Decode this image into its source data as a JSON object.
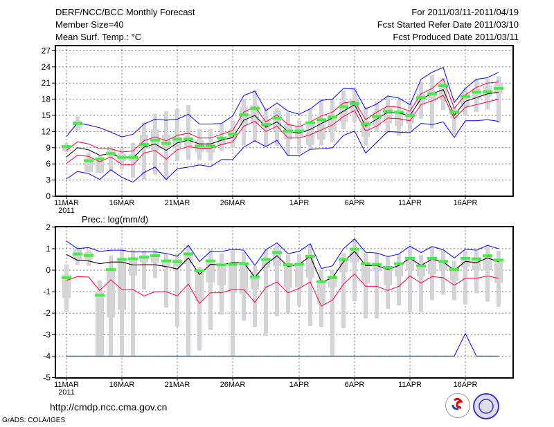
{
  "header": {
    "title": "DERF/NCC/BCC Monthly Forecast",
    "member_size": "Member Size=40",
    "variable": "Mean Surf. Temp.: °C",
    "period": "For 2011/03/11-2011/04/19",
    "start_date": "Fcst Started Refer Date 2011/03/10",
    "produced_date": "Fcst Produced Date 2011/03/11"
  },
  "footer": {
    "url": "http://cmdp.ncc.cma.gov.cn",
    "credit": "GrADS: COLA/IGES",
    "logos": [
      "BCC",
      "NCC"
    ]
  },
  "colors": {
    "max_min": "#0000ff",
    "spread": "#ff0033",
    "mean": "#000000",
    "marker": "#44ee44",
    "box": "#d3d3d8"
  },
  "chart_data": [
    {
      "type": "line",
      "title": "Mean Surf. Temp.: °C",
      "xlabel": "",
      "ylabel": "",
      "ylim": [
        0,
        27
      ],
      "yticks": [
        "0",
        "3",
        "6",
        "9",
        "12",
        "15",
        "18",
        "21",
        "24",
        "27"
      ],
      "xtick_days": [
        0,
        5,
        10,
        15,
        21,
        26,
        31,
        36
      ],
      "xtick_labels": [
        "11MAR",
        "16MAR",
        "21MAR",
        "26MAR",
        "1APR",
        "6APR",
        "11APR",
        "16APR"
      ],
      "year_label": "2011",
      "grid": true,
      "days": 40,
      "series": [
        {
          "name": "max",
          "color": "#0000ff",
          "values": [
            11.1,
            13.6,
            13.2,
            12.7,
            11.9,
            11.0,
            11.5,
            13.4,
            14.3,
            14.1,
            14.3,
            15.2,
            13.4,
            13.4,
            13.5,
            14.9,
            18.7,
            19.5,
            15.9,
            17.3,
            15.8,
            15.2,
            16.2,
            17.8,
            18.0,
            20.0,
            19.9,
            16.2,
            17.1,
            18.6,
            18.2,
            17.0,
            21.7,
            23.0,
            23.9,
            17.4,
            20.0,
            21.7,
            22.0,
            23.0
          ]
        },
        {
          "name": "min",
          "color": "#0000ff",
          "values": [
            3.2,
            4.6,
            4.2,
            3.1,
            4.9,
            3.5,
            2.6,
            4.4,
            5.4,
            3.1,
            5.1,
            5.4,
            5.8,
            5.5,
            6.8,
            6.8,
            9.1,
            10.3,
            9.2,
            10.4,
            7.5,
            7.5,
            8.7,
            8.8,
            9.0,
            11.3,
            12.1,
            8.0,
            10.0,
            12.0,
            11.9,
            11.8,
            13.5,
            13.3,
            13.8,
            10.9,
            14.0,
            14.0,
            14.2,
            13.9
          ]
        },
        {
          "name": "upper",
          "color": "#ff0033",
          "values": [
            8.5,
            10.1,
            9.7,
            8.8,
            8.8,
            8.2,
            8.4,
            10.3,
            11.0,
            10.3,
            11.3,
            11.7,
            10.8,
            10.8,
            11.5,
            12.2,
            15.6,
            16.6,
            13.8,
            15.1,
            13.3,
            12.9,
            13.8,
            14.9,
            15.6,
            17.3,
            17.6,
            14.2,
            15.6,
            16.7,
            16.5,
            15.8,
            19.0,
            20.0,
            21.8,
            16.3,
            18.8,
            20.2,
            21.0,
            21.2
          ]
        },
        {
          "name": "lower",
          "color": "#ff0033",
          "values": [
            6.1,
            7.6,
            7.4,
            6.4,
            7.3,
            5.9,
            5.8,
            8.0,
            8.5,
            6.9,
            8.6,
            9.2,
            8.9,
            8.9,
            9.6,
            10.1,
            13.0,
            13.9,
            12.0,
            13.0,
            10.8,
            10.8,
            11.4,
            12.3,
            13.2,
            14.8,
            15.9,
            12.1,
            13.0,
            14.5,
            14.4,
            14.0,
            17.0,
            17.7,
            18.7,
            14.4,
            16.5,
            17.0,
            17.5,
            18.0
          ]
        },
        {
          "name": "mean",
          "color": "#000000",
          "values": [
            7.3,
            9.0,
            8.6,
            7.6,
            7.9,
            7.1,
            7.1,
            9.1,
            9.7,
            8.5,
            9.9,
            10.4,
            9.7,
            9.7,
            10.4,
            10.9,
            14.1,
            15.0,
            12.8,
            13.8,
            12.0,
            11.7,
            12.4,
            13.5,
            14.5,
            15.8,
            17.0,
            13.0,
            14.3,
            15.6,
            15.4,
            15.0,
            18.1,
            19.0,
            19.8,
            15.0,
            17.6,
            18.3,
            19.0,
            19.3
          ]
        }
      ],
      "markers": [
        9.2,
        13.5,
        6.6,
        6.9,
        7.9,
        7.2,
        7.2,
        9.6,
        10.4,
        9.8,
        10.6,
        10.6,
        9.3,
        9.3,
        10.8,
        11.5,
        15.1,
        16.3,
        13.3,
        14.5,
        12.1,
        12.1,
        13.6,
        14.2,
        14.7,
        16.6,
        17.2,
        13.4,
        14.8,
        15.8,
        15.6,
        15.0,
        18.3,
        19.0,
        20.5,
        15.6,
        18.5,
        19.3,
        19.4,
        20.0
      ],
      "whisker": [
        [
          8.2,
          9.9
        ],
        [
          12.2,
          14.8
        ],
        [
          4.5,
          8.1
        ],
        [
          4.3,
          7.5
        ],
        [
          4.7,
          9.2
        ],
        [
          5.0,
          9.0
        ],
        [
          3.4,
          9.9
        ],
        [
          3.1,
          13.8
        ],
        [
          4.0,
          15.3
        ],
        [
          3.1,
          15.8
        ],
        [
          6.5,
          16.2
        ],
        [
          6.7,
          16.9
        ],
        [
          6.7,
          12.5
        ],
        [
          6.6,
          12.5
        ],
        [
          8.4,
          13.4
        ],
        [
          9.0,
          14.1
        ],
        [
          9.4,
          18.1
        ],
        [
          10.0,
          19.7
        ],
        [
          9.3,
          16.4
        ],
        [
          9.4,
          16.4
        ],
        [
          7.5,
          15.6
        ],
        [
          8.0,
          14.1
        ],
        [
          8.6,
          16.2
        ],
        [
          9.4,
          18.0
        ],
        [
          10.0,
          17.9
        ],
        [
          12.4,
          19.6
        ],
        [
          13.8,
          20.1
        ],
        [
          9.4,
          16.6
        ],
        [
          12.0,
          17.6
        ],
        [
          11.8,
          18.5
        ],
        [
          11.2,
          17.9
        ],
        [
          12.1,
          17.6
        ],
        [
          14.4,
          21.2
        ],
        [
          12.6,
          22.5
        ],
        [
          16.0,
          21.9
        ],
        [
          11.4,
          16.6
        ],
        [
          14.9,
          20.1
        ],
        [
          15.6,
          21.7
        ],
        [
          16.1,
          21.8
        ],
        [
          13.6,
          22.2
        ]
      ],
      "box": [
        [
          8.4,
          9.5
        ],
        [
          12.6,
          14.0
        ],
        [
          4.5,
          7.0
        ],
        [
          4.3,
          7.2
        ],
        [
          7.5,
          8.8
        ],
        [
          6.5,
          8.0
        ],
        [
          6.5,
          7.8
        ],
        [
          8.8,
          11.4
        ],
        [
          8.5,
          12.4
        ],
        [
          8.8,
          11.4
        ],
        [
          9.0,
          11.0
        ],
        [
          8.8,
          11.0
        ],
        [
          8.2,
          10.4
        ],
        [
          8.1,
          10.0
        ],
        [
          9.5,
          11.0
        ],
        [
          10.6,
          12.4
        ],
        [
          13.0,
          16.6
        ],
        [
          13.4,
          16.9
        ],
        [
          12.5,
          14.3
        ],
        [
          12.2,
          15.8
        ],
        [
          10.5,
          13.4
        ],
        [
          11.0,
          13.0
        ],
        [
          9.5,
          13.9
        ],
        [
          10.5,
          14.0
        ],
        [
          12.0,
          15.0
        ],
        [
          13.8,
          17.5
        ],
        [
          15.6,
          18.0
        ],
        [
          11.0,
          14.0
        ],
        [
          13.0,
          15.7
        ],
        [
          13.5,
          16.5
        ],
        [
          13.0,
          15.8
        ],
        [
          13.5,
          15.8
        ],
        [
          17.0,
          19.0
        ],
        [
          17.5,
          19.5
        ],
        [
          18.0,
          20.5
        ],
        [
          14.5,
          15.5
        ],
        [
          16.5,
          19.0
        ],
        [
          18.0,
          20.0
        ],
        [
          18.5,
          20.5
        ],
        [
          19.0,
          21.0
        ]
      ]
    },
    {
      "type": "line",
      "title": "Prec.: log(mm/d)",
      "xlabel": "",
      "ylabel": "",
      "ylim": [
        -5,
        2
      ],
      "yticks": [
        "-5",
        "-4",
        "-3",
        "-2",
        "-1",
        "0",
        "1",
        "2"
      ],
      "xtick_days": [
        0,
        5,
        10,
        15,
        21,
        26,
        31,
        36
      ],
      "xtick_labels": [
        "11MAR",
        "16MAR",
        "21MAR",
        "26MAR",
        "1APR",
        "6APR",
        "11APR",
        "16APR"
      ],
      "year_label": "2011",
      "grid": true,
      "days": 40,
      "series": [
        {
          "name": "max",
          "color": "#0000ff",
          "values": [
            1.35,
            1.0,
            1.05,
            0.87,
            0.93,
            0.93,
            0.85,
            0.85,
            0.85,
            0.78,
            0.65,
            1.15,
            0.4,
            0.87,
            0.87,
            0.97,
            0.93,
            0.22,
            0.95,
            1.27,
            0.77,
            0.87,
            1.23,
            0.08,
            0.2,
            1.0,
            1.45,
            0.83,
            0.8,
            0.63,
            0.75,
            1.12,
            0.82,
            1.1,
            0.95,
            0.57,
            0.97,
            0.93,
            1.15,
            1.0
          ]
        },
        {
          "name": "min",
          "color": "#0000ff",
          "values": [
            -4,
            -4,
            -4,
            -4,
            -4,
            -4,
            -4,
            -4,
            -4,
            -4,
            -4,
            -4,
            -4,
            -4,
            -4,
            -4,
            -4,
            -4,
            -4,
            -4,
            -4,
            -4,
            -4,
            -4,
            -4,
            -4,
            -4,
            -4,
            -4,
            -4,
            -4,
            -4,
            -4,
            -4,
            -4,
            -4,
            -2.95,
            -4,
            -4,
            -4
          ]
        },
        {
          "name": "upper",
          "color": "#ff0033",
          "values": [
            0.73,
            0.46,
            0.43,
            0.3,
            0.38,
            0.38,
            0.24,
            0.25,
            0.25,
            0.17,
            0.05,
            0.57,
            -0.2,
            0.27,
            0.25,
            0.35,
            0.35,
            -0.33,
            0.27,
            0.67,
            0.17,
            0.27,
            0.65,
            -0.55,
            -0.36,
            0.39,
            0.87,
            0.22,
            0.22,
            0.03,
            0.22,
            0.55,
            0.22,
            0.51,
            0.39,
            -0.01,
            0.41,
            0.35,
            0.57,
            0.39
          ]
        },
        {
          "name": "lower",
          "color": "#ff0033",
          "values": [
            -0.48,
            -0.3,
            -0.32,
            -0.95,
            -0.45,
            -0.9,
            -0.9,
            -1.2,
            -1.0,
            -1.0,
            -1.2,
            -0.65,
            -1.55,
            -1.05,
            -1.05,
            -0.9,
            -0.9,
            -1.5,
            -0.8,
            -0.55,
            -1.05,
            -0.85,
            -0.55,
            -1.67,
            -1.4,
            -0.65,
            -0.18,
            -0.75,
            -0.75,
            -0.95,
            -0.75,
            -0.27,
            -0.6,
            -0.3,
            -0.35,
            -0.7,
            -0.38,
            -0.38,
            -0.27,
            -0.38
          ]
        },
        {
          "name": "mean",
          "color": "#000000",
          "values": [
            0.73,
            0.46,
            0.43,
            0.3,
            0.38,
            0.38,
            0.24,
            0.25,
            0.25,
            0.17,
            0.05,
            0.57,
            -0.2,
            0.27,
            0.25,
            0.35,
            0.35,
            -0.33,
            0.27,
            0.67,
            0.17,
            0.27,
            0.65,
            -0.55,
            -0.36,
            0.39,
            0.87,
            0.22,
            0.22,
            0.03,
            0.22,
            0.55,
            0.22,
            0.51,
            0.39,
            -0.01,
            0.41,
            0.35,
            0.57,
            0.39
          ]
        }
      ],
      "markers": [
        -0.35,
        0.75,
        0.68,
        -1.17,
        0.03,
        0.5,
        0.53,
        0.6,
        0.68,
        0.43,
        0.4,
        0.75,
        -0.03,
        0.43,
        0.25,
        0.27,
        0.3,
        -0.32,
        0.5,
        0.82,
        0.25,
        0.27,
        0.65,
        -0.53,
        -0.35,
        0.5,
        0.98,
        0.3,
        0.27,
        0.13,
        0.3,
        0.55,
        0.2,
        0.55,
        0.4,
        0.03,
        0.55,
        0.52,
        0.67,
        0.47
      ],
      "whisker": [
        [
          -1.95,
          0.27
        ],
        [
          0.25,
          1.1
        ],
        [
          0.2,
          0.93
        ],
        [
          -4,
          -0.47
        ],
        [
          -4,
          0.68
        ],
        [
          -4,
          1.05
        ],
        [
          -4,
          0.95
        ],
        [
          -0.9,
          0.9
        ],
        [
          -0.37,
          1.0
        ],
        [
          -1.75,
          0.75
        ],
        [
          -2.63,
          0.77
        ],
        [
          -4,
          1.17
        ],
        [
          -3.75,
          0.17
        ],
        [
          -2.78,
          0.97
        ],
        [
          -2.07,
          0.78
        ],
        [
          -4,
          0.97
        ],
        [
          -2.35,
          0.85
        ],
        [
          -2.65,
          0.2
        ],
        [
          -3.05,
          1.0
        ],
        [
          -2.15,
          1.15
        ],
        [
          -2.0,
          0.72
        ],
        [
          -1.67,
          0.75
        ],
        [
          -2.6,
          1.2
        ],
        [
          -2.65,
          0.0
        ],
        [
          -4,
          0.0
        ],
        [
          -2.7,
          0.8
        ],
        [
          -1.45,
          1.45
        ],
        [
          -2.25,
          0.8
        ],
        [
          -2.25,
          0.8
        ],
        [
          -1.8,
          0.63
        ],
        [
          -1.65,
          0.75
        ],
        [
          -1.98,
          1.1
        ],
        [
          -1.95,
          0.7
        ],
        [
          -1.4,
          1.1
        ],
        [
          -1.15,
          0.95
        ],
        [
          -1.4,
          0.43
        ],
        [
          -1.6,
          0.9
        ],
        [
          -1.08,
          0.9
        ],
        [
          -1.47,
          1.1
        ],
        [
          -1.7,
          0.9
        ]
      ],
      "box": [
        [
          -1.3,
          -0.2
        ],
        [
          0.45,
          1.0
        ],
        [
          0.5,
          0.85
        ],
        [
          -4,
          -1.0
        ],
        [
          -2.2,
          0.1
        ],
        [
          -1.85,
          0.55
        ],
        [
          -0.25,
          0.6
        ],
        [
          0.35,
          0.7
        ],
        [
          0.35,
          0.75
        ],
        [
          0.15,
          0.5
        ],
        [
          0.1,
          0.5
        ],
        [
          0.3,
          0.85
        ],
        [
          -1.43,
          0.0
        ],
        [
          -0.57,
          0.5
        ],
        [
          -0.7,
          0.3
        ],
        [
          -1.05,
          0.35
        ],
        [
          -1.1,
          0.35
        ],
        [
          -0.9,
          -0.1
        ],
        [
          0.1,
          0.55
        ],
        [
          0.18,
          0.95
        ],
        [
          -0.82,
          0.3
        ],
        [
          -0.8,
          0.35
        ],
        [
          -0.35,
          0.7
        ],
        [
          -1.6,
          -0.5
        ],
        [
          -0.8,
          -0.25
        ],
        [
          -0.1,
          0.55
        ],
        [
          0.35,
          1.0
        ],
        [
          -0.6,
          0.3
        ],
        [
          -0.05,
          0.3
        ],
        [
          -0.7,
          0.2
        ],
        [
          -0.3,
          0.35
        ],
        [
          0.0,
          0.6
        ],
        [
          -0.3,
          0.25
        ],
        [
          -0.2,
          0.6
        ],
        [
          0.0,
          0.5
        ],
        [
          -0.5,
          0.1
        ],
        [
          0.15,
          0.6
        ],
        [
          0.0,
          0.6
        ],
        [
          0.0,
          0.65
        ],
        [
          -0.6,
          0.5
        ]
      ]
    }
  ]
}
